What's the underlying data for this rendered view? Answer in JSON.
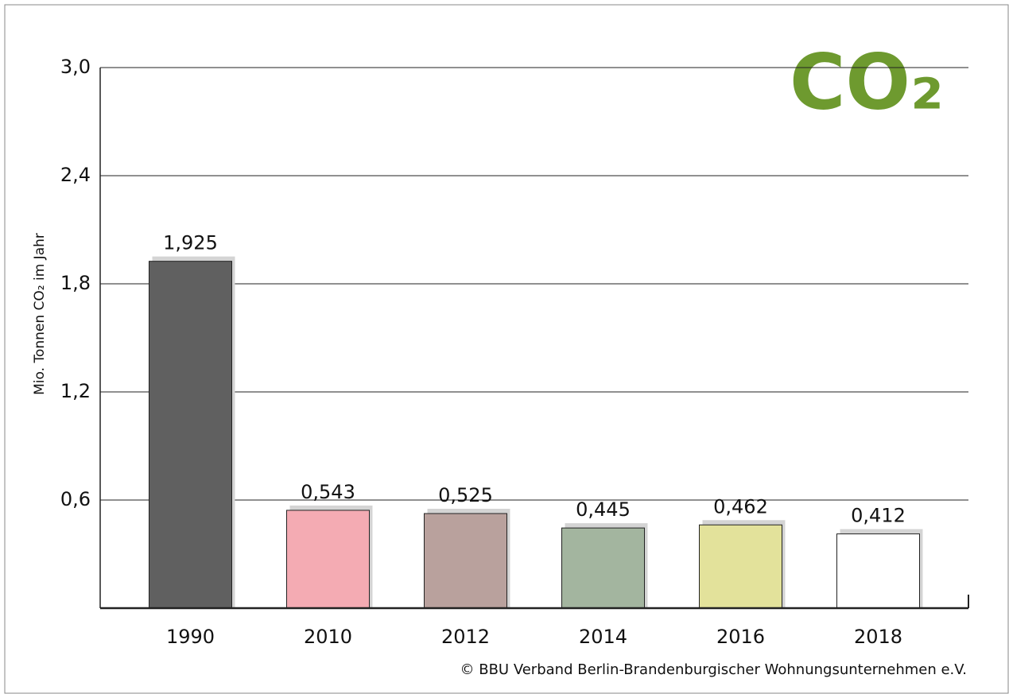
{
  "chart_data": {
    "type": "bar",
    "ylabel": "Mio. Tonnen CO₂ im Jahr",
    "logo": "CO₂",
    "source": "© BBU Verband Berlin-Brandenburgischer Wohnungsunternehmen e.V.",
    "categories": [
      "1990",
      "2010",
      "2012",
      "2014",
      "2016",
      "2018"
    ],
    "values": [
      1.925,
      0.543,
      0.525,
      0.445,
      0.462,
      0.412
    ],
    "value_labels": [
      "1,925",
      "0,543",
      "0,525",
      "0,445",
      "0,462",
      "0,412"
    ],
    "colors": [
      "#606060",
      "#f4abb3",
      "#b9a19d",
      "#a3b59f",
      "#e3e29b",
      "#ffffff"
    ],
    "ylim": [
      0,
      3
    ],
    "yticks": [
      {
        "value": 0.6,
        "label": "0,6"
      },
      {
        "value": 1.2,
        "label": "1,2"
      },
      {
        "value": 1.8,
        "label": "1,8"
      },
      {
        "value": 2.4,
        "label": "2,4"
      },
      {
        "value": 3,
        "label": "3,0"
      }
    ],
    "grid": true
  }
}
